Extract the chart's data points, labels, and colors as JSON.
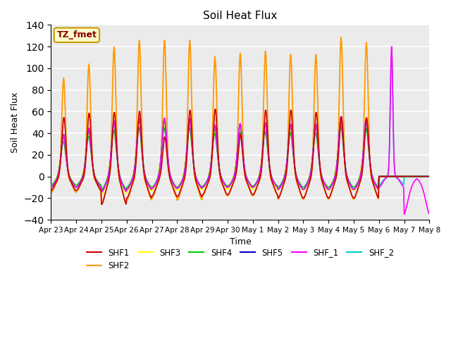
{
  "title": "Soil Heat Flux",
  "xlabel": "Time",
  "ylabel": "Soil Heat Flux",
  "ylim": [
    -40,
    140
  ],
  "yticks": [
    -40,
    -20,
    0,
    20,
    40,
    60,
    80,
    100,
    120,
    140
  ],
  "xtick_labels": [
    "Apr 23",
    "Apr 24",
    "Apr 25",
    "Apr 26",
    "Apr 27",
    "Apr 28",
    "Apr 29",
    "Apr 30",
    "May 1",
    "May 2",
    "May 3",
    "May 4",
    "May 5",
    "May 6",
    "May 7",
    "May 8"
  ],
  "series_colors": {
    "SHF1": "#cc0000",
    "SHF2": "#ff9900",
    "SHF3": "#ffff00",
    "SHF4": "#00cc00",
    "SHF5": "#0000cc",
    "SHF_1": "#ff00ff",
    "SHF_2": "#00cccc"
  },
  "annotation_text": "TZ_fmet",
  "annotation_color": "#880000",
  "annotation_bg": "#ffffcc",
  "annotation_border": "#cc9900",
  "plot_bg": "#ebebeb",
  "grid_color": "white",
  "num_days": 15,
  "shf2_peaks": [
    91,
    104,
    120,
    126,
    126,
    126,
    111,
    114,
    116,
    113,
    113,
    129,
    124,
    0,
    0
  ],
  "shf1_peaks": [
    55,
    59,
    60,
    61,
    37,
    62,
    63,
    39,
    62,
    62,
    60,
    56,
    55,
    0,
    0
  ],
  "shf1_night": [
    -13,
    -13,
    -26,
    -20,
    -18,
    -18,
    -17,
    -17,
    -17,
    -20,
    -20,
    -20,
    -20,
    0,
    0
  ],
  "shf2_night": [
    -15,
    -15,
    -25,
    -22,
    -20,
    -20,
    -18,
    -18,
    -18,
    -22,
    -22,
    -22,
    -22,
    0,
    0
  ]
}
